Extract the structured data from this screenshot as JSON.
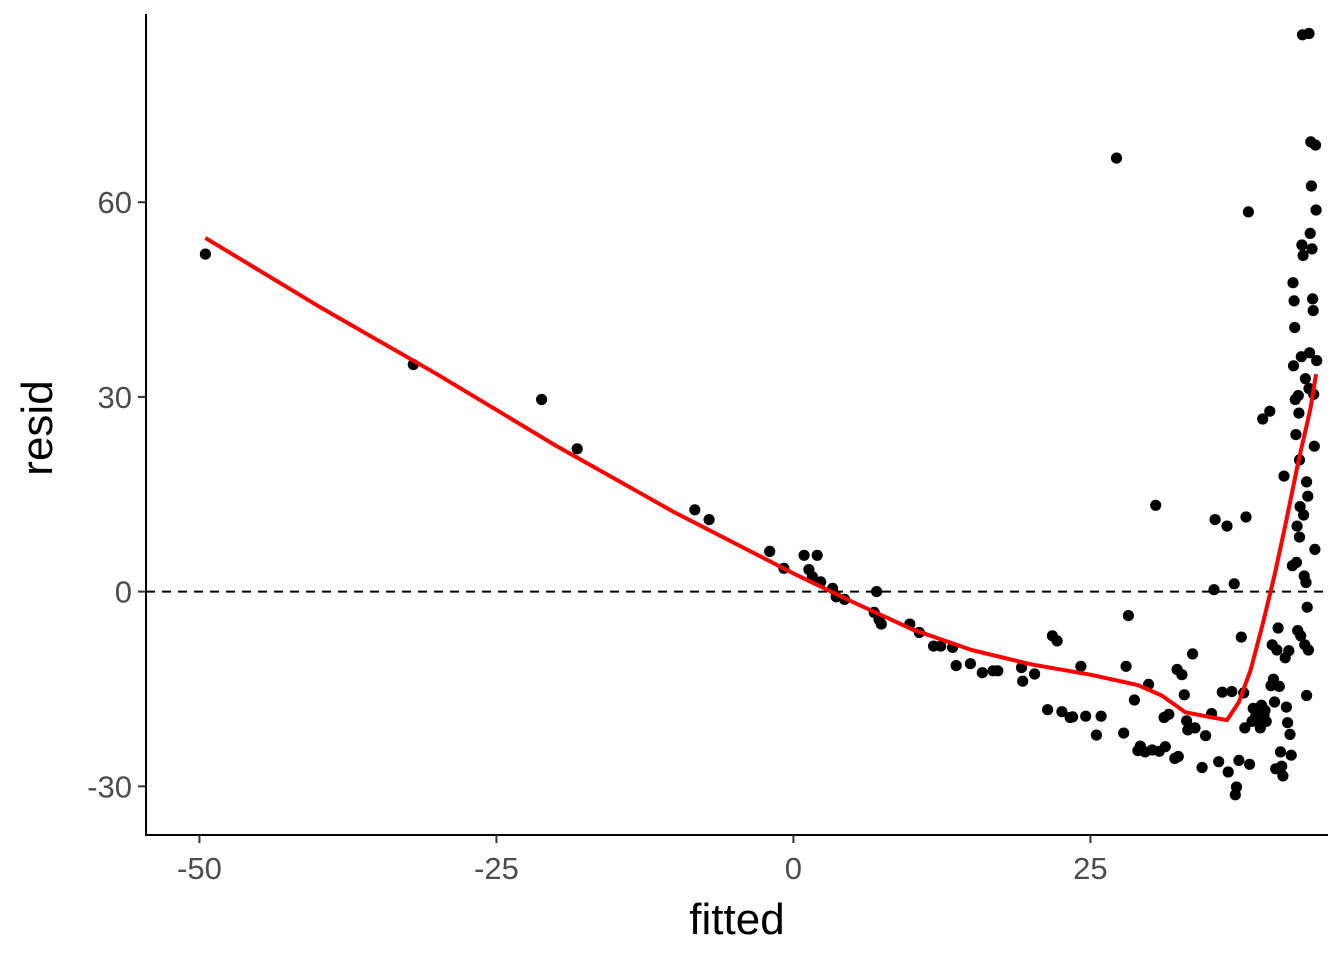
{
  "chart_data": {
    "type": "scatter",
    "xlabel": "fitted",
    "ylabel": "resid",
    "xlim": [
      -54.5,
      45
    ],
    "ylim": [
      -37.5,
      89
    ],
    "x_ticks": [
      -50,
      -25,
      0,
      25
    ],
    "y_ticks": [
      -30,
      0,
      30,
      60
    ],
    "grid": false,
    "reference_line": {
      "y": 0,
      "style": "dashed",
      "color": "#000000"
    },
    "point_color": "#000000",
    "smooth_color": "#ff0000",
    "points": [
      [
        -49.5,
        52
      ],
      [
        -32,
        35
      ],
      [
        -21.2,
        29.6
      ],
      [
        -18.2,
        22
      ],
      [
        -8.3,
        12.6
      ],
      [
        -7.1,
        11.1
      ],
      [
        -2,
        6.2
      ],
      [
        -0.8,
        3.6
      ],
      [
        0.9,
        5.6
      ],
      [
        2,
        5.6
      ],
      [
        1.3,
        3.4
      ],
      [
        1.6,
        2.3
      ],
      [
        2.3,
        1.5
      ],
      [
        3.3,
        0.5
      ],
      [
        3.6,
        -0.8
      ],
      [
        4.3,
        -1.2
      ],
      [
        7,
        0
      ],
      [
        6.8,
        -3.2
      ],
      [
        7.2,
        -4.3
      ],
      [
        7.4,
        -5
      ],
      [
        9.8,
        -5
      ],
      [
        10.6,
        -6.3
      ],
      [
        11.8,
        -8.4
      ],
      [
        12.4,
        -8.4
      ],
      [
        13.4,
        -8.6
      ],
      [
        13.7,
        -11.4
      ],
      [
        14.9,
        -11.1
      ],
      [
        15.9,
        -12.5
      ],
      [
        16.8,
        -12.2
      ],
      [
        17.2,
        -12.2
      ],
      [
        19.2,
        -11.7
      ],
      [
        19.3,
        -13.8
      ],
      [
        20.3,
        -12.7
      ],
      [
        21.4,
        -18.2
      ],
      [
        21.8,
        -6.8
      ],
      [
        22.2,
        -7.6
      ],
      [
        22.6,
        -18.5
      ],
      [
        23.3,
        -19.4
      ],
      [
        23.5,
        -19.3
      ],
      [
        24.2,
        -11.5
      ],
      [
        24.6,
        -19.2
      ],
      [
        25.5,
        -22.1
      ],
      [
        25.9,
        -19.2
      ],
      [
        27.2,
        66.8
      ],
      [
        27.8,
        -21.8
      ],
      [
        28,
        -11.5
      ],
      [
        28.2,
        -3.7
      ],
      [
        28.7,
        -16.7
      ],
      [
        29,
        -24.5
      ],
      [
        29.2,
        -23.8
      ],
      [
        29.6,
        -24.7
      ],
      [
        29.9,
        -14.3
      ],
      [
        30.2,
        -24.4
      ],
      [
        30.5,
        13.3
      ],
      [
        30.8,
        -24.6
      ],
      [
        31.2,
        -19.4
      ],
      [
        31.3,
        -23.9
      ],
      [
        31.6,
        -18.9
      ],
      [
        32.1,
        -25.7
      ],
      [
        32.3,
        -12
      ],
      [
        32.4,
        -25.4
      ],
      [
        32.7,
        -12.8
      ],
      [
        32.9,
        -15.9
      ],
      [
        33.1,
        -19.9
      ],
      [
        33.2,
        -21.3
      ],
      [
        33.6,
        -9.6
      ],
      [
        33.8,
        -21
      ],
      [
        34.4,
        -27.1
      ],
      [
        34.7,
        -22.2
      ],
      [
        35.2,
        -18.8
      ],
      [
        35.4,
        0.3
      ],
      [
        35.5,
        11.1
      ],
      [
        35.8,
        -26.2
      ],
      [
        36.1,
        -15.5
      ],
      [
        36.5,
        10.1
      ],
      [
        36.6,
        -27.8
      ],
      [
        36.9,
        -15.4
      ],
      [
        37.1,
        1.2
      ],
      [
        37.2,
        -31.3
      ],
      [
        37.3,
        -30.1
      ],
      [
        37.5,
        -26
      ],
      [
        37.7,
        -7
      ],
      [
        37.9,
        -15.6
      ],
      [
        38,
        -21
      ],
      [
        38.1,
        11.5
      ],
      [
        38.3,
        58.5
      ],
      [
        38.4,
        -26.6
      ],
      [
        38.6,
        -20
      ],
      [
        38.7,
        -18
      ],
      [
        38.9,
        -19.3
      ],
      [
        39,
        -18.6
      ],
      [
        39.2,
        -20.1
      ],
      [
        39.3,
        -21
      ],
      [
        39.4,
        -17.5
      ],
      [
        39.5,
        26.6
      ],
      [
        39.6,
        -19
      ],
      [
        39.7,
        -18.3
      ],
      [
        39.8,
        -20
      ],
      [
        40.1,
        27.8
      ],
      [
        40.2,
        -14.5
      ],
      [
        40.3,
        -8.2
      ],
      [
        40.4,
        -13.5
      ],
      [
        40.5,
        -17
      ],
      [
        40.6,
        -27.3
      ],
      [
        40.7,
        -9
      ],
      [
        40.8,
        -5.6
      ],
      [
        40.9,
        -14.6
      ],
      [
        41,
        -24.7
      ],
      [
        41.1,
        -26.9
      ],
      [
        41.2,
        -28.4
      ],
      [
        41.3,
        17.8
      ],
      [
        41.4,
        -10.2
      ],
      [
        41.5,
        -17.8
      ],
      [
        41.6,
        -20.2
      ],
      [
        41.7,
        -9.1
      ],
      [
        41.8,
        -22
      ],
      [
        41.9,
        -25.2
      ],
      [
        42,
        4
      ],
      [
        42.05,
        47.6
      ],
      [
        42.1,
        34.8
      ],
      [
        42.15,
        44.8
      ],
      [
        42.2,
        40.7
      ],
      [
        42.25,
        29.6
      ],
      [
        42.3,
        24.2
      ],
      [
        42.35,
        4.5
      ],
      [
        42.4,
        10.1
      ],
      [
        42.45,
        -6
      ],
      [
        42.5,
        30.2
      ],
      [
        42.55,
        27.5
      ],
      [
        42.6,
        20.3
      ],
      [
        42.65,
        13.1
      ],
      [
        42.7,
        -6.8
      ],
      [
        42.75,
        36.2
      ],
      [
        42.8,
        53.4
      ],
      [
        42.85,
        85.8
      ],
      [
        42.9,
        51.8
      ],
      [
        42.95,
        11.8
      ],
      [
        43,
        2.4
      ],
      [
        43.05,
        -8.2
      ],
      [
        43.1,
        32.8
      ],
      [
        43.15,
        1.4
      ],
      [
        43.2,
        16.9
      ],
      [
        43.25,
        -2.4
      ],
      [
        43.3,
        14.7
      ],
      [
        43.35,
        -9
      ],
      [
        43.4,
        86
      ],
      [
        43.45,
        36.8
      ],
      [
        43.5,
        55.2
      ],
      [
        43.55,
        69.3
      ],
      [
        43.6,
        62.5
      ],
      [
        43.65,
        52.8
      ],
      [
        43.7,
        45.1
      ],
      [
        43.75,
        43.3
      ],
      [
        43.8,
        30.4
      ],
      [
        43.85,
        22.4
      ],
      [
        43.9,
        6.5
      ],
      [
        43.95,
        68.8
      ],
      [
        44,
        58.8
      ],
      [
        44.05,
        35.6
      ],
      [
        43.4,
        31.3
      ],
      [
        42.6,
        8.4
      ],
      [
        43.2,
        -16
      ]
    ],
    "smooth_line": [
      [
        -49.5,
        54.5
      ],
      [
        -40,
        44
      ],
      [
        -30,
        33.5
      ],
      [
        -20,
        22.5
      ],
      [
        -10,
        12.2
      ],
      [
        0,
        2.8
      ],
      [
        5,
        -1.6
      ],
      [
        10,
        -5.8
      ],
      [
        15,
        -9
      ],
      [
        20,
        -11.2
      ],
      [
        25,
        -12.8
      ],
      [
        29,
        -14.4
      ],
      [
        31,
        -16
      ],
      [
        33,
        -18.6
      ],
      [
        35,
        -19.3
      ],
      [
        36.5,
        -19.8
      ],
      [
        37.5,
        -17
      ],
      [
        38.5,
        -12
      ],
      [
        39.5,
        -5
      ],
      [
        40.5,
        2.5
      ],
      [
        41.5,
        11
      ],
      [
        42.5,
        20
      ],
      [
        43.5,
        28
      ],
      [
        44,
        33.5
      ]
    ]
  }
}
